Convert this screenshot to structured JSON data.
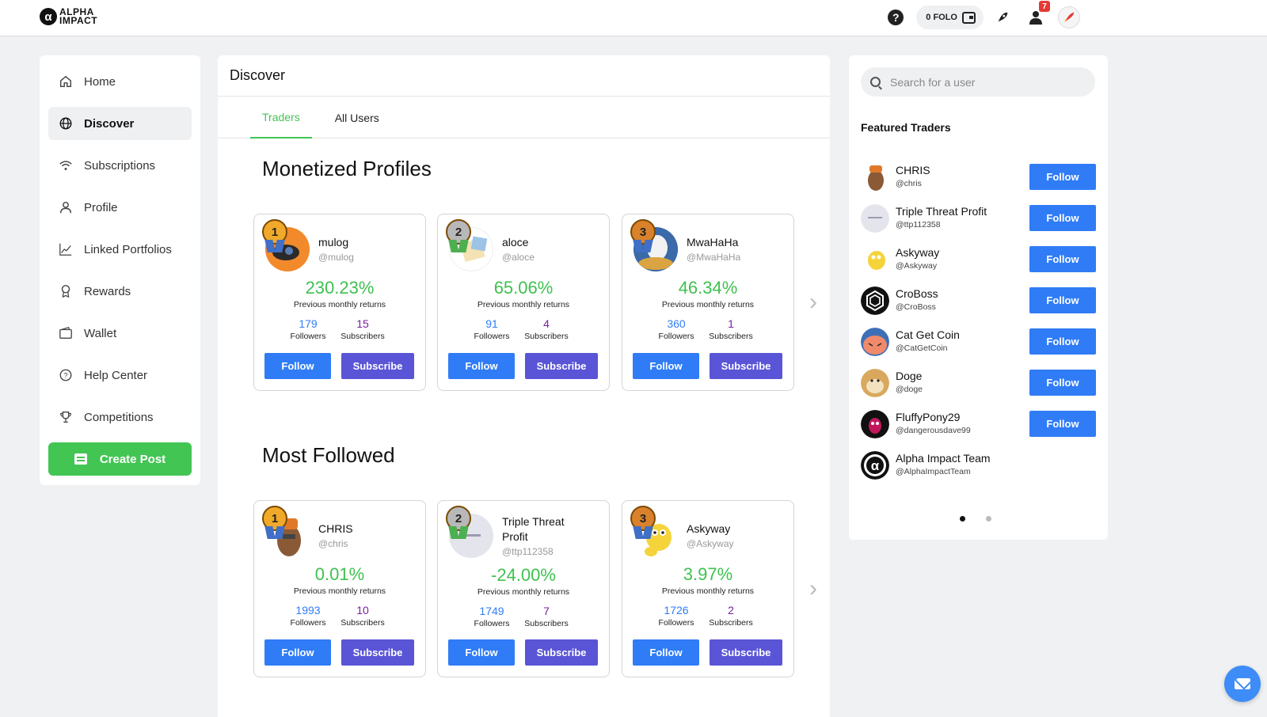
{
  "header": {
    "logo_mark": "α",
    "logo_line1": "ALPHA",
    "logo_line2": "IMPACT",
    "folo_label": "0 FOLO",
    "notification_count": "7"
  },
  "sidebar": {
    "items": [
      {
        "label": "Home",
        "icon": "home-icon"
      },
      {
        "label": "Discover",
        "icon": "globe-icon",
        "active": true
      },
      {
        "label": "Subscriptions",
        "icon": "wifi-icon"
      },
      {
        "label": "Profile",
        "icon": "person-icon"
      },
      {
        "label": "Linked Portfolios",
        "icon": "chart-icon"
      },
      {
        "label": "Rewards",
        "icon": "award-icon"
      },
      {
        "label": "Wallet",
        "icon": "wallet-icon"
      },
      {
        "label": "Help Center",
        "icon": "help-icon"
      },
      {
        "label": "Competitions",
        "icon": "trophy-icon"
      }
    ],
    "create_post": "Create Post"
  },
  "main": {
    "title": "Discover",
    "tabs": [
      "Traders",
      "All Users"
    ],
    "monetized_title": "Monetized Profiles",
    "most_followed_title": "Most Followed",
    "returns_label": "Previous monthly returns",
    "followers_label": "Followers",
    "subscribers_label": "Subscribers",
    "follow_label": "Follow",
    "subscribe_label": "Subscribe",
    "monetized": [
      {
        "rank": "1",
        "name": "mulog",
        "handle": "@mulog",
        "returns": "230.23%",
        "followers": "179",
        "subscribers": "15"
      },
      {
        "rank": "2",
        "name": "aloce",
        "handle": "@aloce",
        "returns": "65.06%",
        "followers": "91",
        "subscribers": "4"
      },
      {
        "rank": "3",
        "name": "MwaHaHa",
        "handle": "@MwaHaHa",
        "returns": "46.34%",
        "followers": "360",
        "subscribers": "1"
      }
    ],
    "most_followed": [
      {
        "rank": "1",
        "name": "CHRIS",
        "handle": "@chris",
        "returns": "0.01%",
        "followers": "1993",
        "subscribers": "10"
      },
      {
        "rank": "2",
        "name": "Triple Threat Profit",
        "handle": "@ttp112358",
        "returns": "-24.00%",
        "followers": "1749",
        "subscribers": "7"
      },
      {
        "rank": "3",
        "name": "Askyway",
        "handle": "@Askyway",
        "returns": "3.97%",
        "followers": "1726",
        "subscribers": "2"
      }
    ]
  },
  "right": {
    "search_placeholder": "Search for a user",
    "featured_title": "Featured Traders",
    "follow_label": "Follow",
    "featured": [
      {
        "name": "CHRIS",
        "handle": "@chris",
        "has_follow": true
      },
      {
        "name": "Triple Threat Profit",
        "handle": "@ttp112358",
        "has_follow": true
      },
      {
        "name": "Askyway",
        "handle": "@Askyway",
        "has_follow": true
      },
      {
        "name": "CroBoss",
        "handle": "@CroBoss",
        "has_follow": true
      },
      {
        "name": "Cat Get Coin",
        "handle": "@CatGetCoin",
        "has_follow": true
      },
      {
        "name": "Doge",
        "handle": "@doge",
        "has_follow": true
      },
      {
        "name": "FluffyPony29",
        "handle": "@dangerousdave99",
        "has_follow": true
      },
      {
        "name": "Alpha Impact Team",
        "handle": "@AlphaImpactTeam",
        "has_follow": false
      }
    ]
  }
}
